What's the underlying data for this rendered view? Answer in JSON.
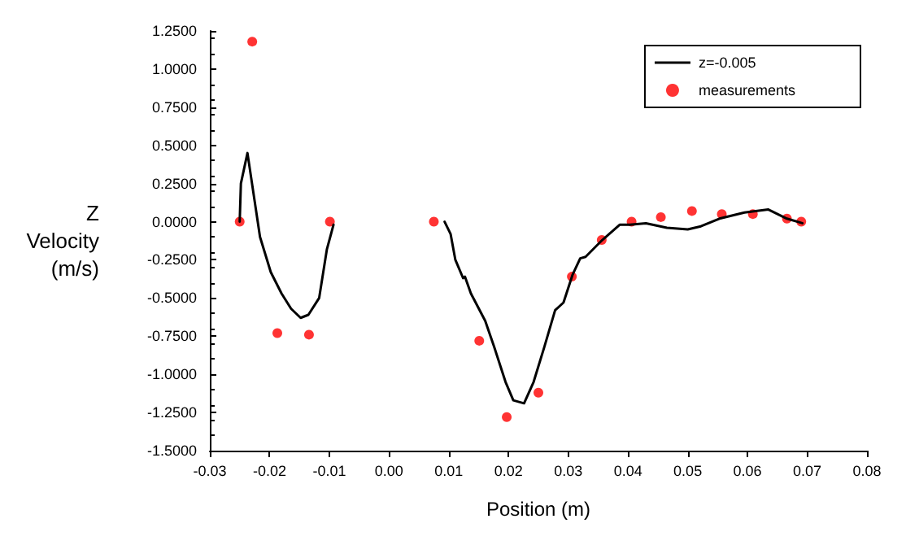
{
  "chart_data": {
    "type": "line",
    "xlabel": "Position (m)",
    "ylabel": "Z Velocity (m/s)",
    "xlim": [
      -0.03,
      0.08
    ],
    "ylim": [
      -1.5,
      1.25
    ],
    "xticks": [
      {
        "value": -0.03,
        "label": "-0.03"
      },
      {
        "value": -0.02,
        "label": "-0.02"
      },
      {
        "value": -0.01,
        "label": "-0.01"
      },
      {
        "value": 0,
        "label": "0.00"
      },
      {
        "value": 0.01,
        "label": "0.01"
      },
      {
        "value": 0.02,
        "label": "0.02"
      },
      {
        "value": 0.03,
        "label": "0.03"
      },
      {
        "value": 0.04,
        "label": "0.04"
      },
      {
        "value": 0.05,
        "label": "0.05"
      },
      {
        "value": 0.06,
        "label": "0.06"
      },
      {
        "value": 0.07,
        "label": "0.07"
      },
      {
        "value": 0.08,
        "label": "0.08"
      }
    ],
    "yticks": [
      {
        "value": -1.5,
        "label": "-1.5000"
      },
      {
        "value": -1.25,
        "label": "-1.2500"
      },
      {
        "value": -1,
        "label": "-1.0000"
      },
      {
        "value": -0.75,
        "label": "-0.7500"
      },
      {
        "value": -0.5,
        "label": "-0.5000"
      },
      {
        "value": -0.25,
        "label": "-0.2500"
      },
      {
        "value": 0,
        "label": "0.0000"
      },
      {
        "value": 0.25,
        "label": "0.2500"
      },
      {
        "value": 0.5,
        "label": "0.5000"
      },
      {
        "value": 0.75,
        "label": "0.7500"
      },
      {
        "value": 1,
        "label": "1.0000"
      },
      {
        "value": 1.25,
        "label": "1.2500"
      }
    ],
    "grid": false,
    "legend": "top right",
    "series": [
      {
        "name": "z=-0.005",
        "color": "#000000",
        "marker": "none",
        "line_style": "solid",
        "x": [
          -0.025,
          -0.0248,
          -0.0237,
          -0.0216,
          -0.0198,
          -0.018,
          -0.0164,
          -0.0148,
          -0.0135,
          -0.0117,
          -0.0104,
          -0.0093,
          0,
          0.0093,
          0.0103,
          0.0111,
          0.0124,
          0.0127,
          0.0137,
          0.0161,
          0.0176,
          0.0195,
          0.0208,
          0.0226,
          0.0242,
          0.026,
          0.0278,
          0.0292,
          0.0307,
          0.032,
          0.0329,
          0.0357,
          0.0386,
          0.0403,
          0.043,
          0.0465,
          0.05,
          0.0522,
          0.0553,
          0.0595,
          0.0635,
          0.0666,
          0.0692
        ],
        "values": [
          0,
          0.25,
          0.45,
          -0.1,
          -0.33,
          -0.47,
          -0.57,
          -0.63,
          -0.61,
          -0.5,
          -0.18,
          -0.02,
          null,
          0,
          -0.08,
          -0.25,
          -0.37,
          -0.36,
          -0.47,
          -0.65,
          -0.82,
          -1.05,
          -1.17,
          -1.19,
          -1.05,
          -0.82,
          -0.58,
          -0.53,
          -0.35,
          -0.24,
          -0.23,
          -0.12,
          -0.02,
          -0.02,
          -0.01,
          -0.04,
          -0.05,
          -0.03,
          0.02,
          0.06,
          0.08,
          0.02,
          -0.01
        ]
      },
      {
        "name": "measurements",
        "type": "scatter",
        "color": "#ff0000",
        "marker": "circle",
        "x": [
          -0.025,
          -0.0229,
          -0.0187,
          -0.0134,
          -0.0099,
          0.0075,
          0.0151,
          0.0197,
          0.025,
          0.0306,
          0.0356,
          0.0406,
          0.0455,
          0.0507,
          0.0557,
          0.0609,
          0.0666,
          0.069
        ],
        "values": [
          0,
          1.18,
          -0.73,
          -0.74,
          0,
          0,
          -0.78,
          -1.28,
          -1.12,
          -0.36,
          -0.12,
          0,
          0.03,
          0.07,
          0.05,
          0.05,
          0.02,
          0
        ]
      }
    ]
  }
}
